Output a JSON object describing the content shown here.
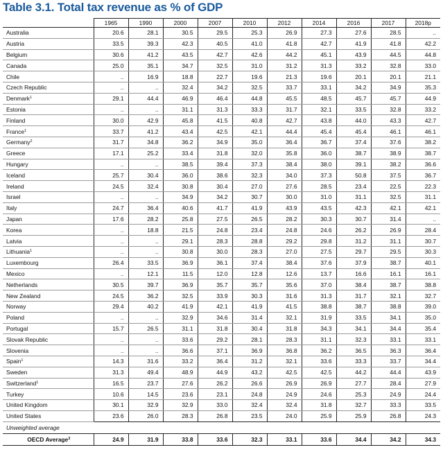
{
  "title": "Table 3.1. Total tax revenue as % of GDP",
  "columns": [
    "1965",
    "1990",
    "2000",
    "2007",
    "2010",
    "2012",
    "2014",
    "2016",
    "2017",
    "2018p"
  ],
  "rows": [
    {
      "country": "Australia",
      "sup": "",
      "values": [
        "20.6",
        "28.1",
        "30.5",
        "29.5",
        "25.3",
        "26.9",
        "27.3",
        "27.6",
        "28.5",
        ".."
      ]
    },
    {
      "country": "Austria",
      "sup": "",
      "values": [
        "33.5",
        "39.3",
        "42.3",
        "40.5",
        "41.0",
        "41.8",
        "42.7",
        "41.9",
        "41.8",
        "42.2"
      ]
    },
    {
      "country": "Belgium",
      "sup": "",
      "values": [
        "30.6",
        "41.2",
        "43.5",
        "42.7",
        "42.6",
        "44.2",
        "45.1",
        "43.9",
        "44.5",
        "44.8"
      ]
    },
    {
      "country": "Canada",
      "sup": "",
      "values": [
        "25.0",
        "35.1",
        "34.7",
        "32.5",
        "31.0",
        "31.2",
        "31.3",
        "33.2",
        "32.8",
        "33.0"
      ]
    },
    {
      "country": "Chile",
      "sup": "",
      "values": [
        "..",
        "16.9",
        "18.8",
        "22.7",
        "19.6",
        "21.3",
        "19.6",
        "20.1",
        "20.1",
        "21.1"
      ]
    },
    {
      "country": "Czech Republic",
      "sup": "",
      "values": [
        "..",
        "..",
        "32.4",
        "34.2",
        "32.5",
        "33.7",
        "33.1",
        "34.2",
        "34.9",
        "35.3"
      ]
    },
    {
      "country": "Denmark",
      "sup": "1",
      "values": [
        "29.1",
        "44.4",
        "46.9",
        "46.4",
        "44.8",
        "45.5",
        "48.5",
        "45.7",
        "45.7",
        "44.9"
      ]
    },
    {
      "country": "Estonia",
      "sup": "",
      "values": [
        "..",
        "..",
        "31.1",
        "31.3",
        "33.3",
        "31.7",
        "32.1",
        "33.5",
        "32.8",
        "33.2"
      ]
    },
    {
      "country": "Finland",
      "sup": "",
      "values": [
        "30.0",
        "42.9",
        "45.8",
        "41.5",
        "40.8",
        "42.7",
        "43.8",
        "44.0",
        "43.3",
        "42.7"
      ]
    },
    {
      "country": "France",
      "sup": "1",
      "values": [
        "33.7",
        "41.2",
        "43.4",
        "42.5",
        "42.1",
        "44.4",
        "45.4",
        "45.4",
        "46.1",
        "46.1"
      ]
    },
    {
      "country": "Germany",
      "sup": "2",
      "values": [
        "31.7",
        "34.8",
        "36.2",
        "34.9",
        "35.0",
        "36.4",
        "36.7",
        "37.4",
        "37.6",
        "38.2"
      ]
    },
    {
      "country": "Greece",
      "sup": "",
      "values": [
        "17.1",
        "25.2",
        "33.4",
        "31.8",
        "32.0",
        "35.8",
        "36.0",
        "38.7",
        "38.9",
        "38.7"
      ]
    },
    {
      "country": "Hungary",
      "sup": "",
      "values": [
        "..",
        "..",
        "38.5",
        "39.4",
        "37.3",
        "38.4",
        "38.0",
        "39.1",
        "38.2",
        "36.6"
      ]
    },
    {
      "country": "Iceland",
      "sup": "",
      "values": [
        "25.7",
        "30.4",
        "36.0",
        "38.6",
        "32.3",
        "34.0",
        "37.3",
        "50.8",
        "37.5",
        "36.7"
      ]
    },
    {
      "country": "Ireland",
      "sup": "",
      "values": [
        "24.5",
        "32.4",
        "30.8",
        "30.4",
        "27.0",
        "27.6",
        "28.5",
        "23.4",
        "22.5",
        "22.3"
      ]
    },
    {
      "country": "Israel",
      "sup": "",
      "values": [
        "..",
        "..",
        "34.9",
        "34.2",
        "30.7",
        "30.0",
        "31.0",
        "31.1",
        "32.5",
        "31.1"
      ]
    },
    {
      "country": "Italy",
      "sup": "",
      "values": [
        "24.7",
        "36.4",
        "40.6",
        "41.7",
        "41.9",
        "43.9",
        "43.5",
        "42.3",
        "42.1",
        "42.1"
      ]
    },
    {
      "country": "Japan",
      "sup": "",
      "values": [
        "17.6",
        "28.2",
        "25.8",
        "27.5",
        "26.5",
        "28.2",
        "30.3",
        "30.7",
        "31.4",
        ".."
      ]
    },
    {
      "country": "Korea",
      "sup": "",
      "values": [
        "..",
        "18.8",
        "21.5",
        "24.8",
        "23.4",
        "24.8",
        "24.6",
        "26.2",
        "26.9",
        "28.4"
      ]
    },
    {
      "country": "Latvia",
      "sup": "",
      "values": [
        "..",
        "..",
        "29.1",
        "28.3",
        "28.8",
        "29.2",
        "29.8",
        "31.2",
        "31.1",
        "30.7"
      ]
    },
    {
      "country": "Lithuania",
      "sup": "1",
      "values": [
        "..",
        "..",
        "30.8",
        "30.0",
        "28.3",
        "27.0",
        "27.5",
        "29.7",
        "29.5",
        "30.3"
      ]
    },
    {
      "country": "Luxembourg",
      "sup": "",
      "values": [
        "26.4",
        "33.5",
        "36.9",
        "36.1",
        "37.4",
        "38.4",
        "37.6",
        "37.9",
        "38.7",
        "40.1"
      ]
    },
    {
      "country": "Mexico",
      "sup": "",
      "values": [
        "..",
        "12.1",
        "11.5",
        "12.0",
        "12.8",
        "12.6",
        "13.7",
        "16.6",
        "16.1",
        "16.1"
      ]
    },
    {
      "country": "Netherlands",
      "sup": "",
      "values": [
        "30.5",
        "39.7",
        "36.9",
        "35.7",
        "35.7",
        "35.6",
        "37.0",
        "38.4",
        "38.7",
        "38.8"
      ]
    },
    {
      "country": "New Zealand",
      "sup": "",
      "values": [
        "24.5",
        "36.2",
        "32.5",
        "33.9",
        "30.3",
        "31.6",
        "31.3",
        "31.7",
        "32.1",
        "32.7"
      ]
    },
    {
      "country": "Norway",
      "sup": "",
      "values": [
        "29.4",
        "40.2",
        "41.9",
        "42.1",
        "41.9",
        "41.5",
        "38.8",
        "38.7",
        "38.8",
        "39.0"
      ]
    },
    {
      "country": "Poland",
      "sup": "",
      "values": [
        "..",
        "..",
        "32.9",
        "34.6",
        "31.4",
        "32.1",
        "31.9",
        "33.5",
        "34.1",
        "35.0"
      ]
    },
    {
      "country": "Portugal",
      "sup": "",
      "values": [
        "15.7",
        "26.5",
        "31.1",
        "31.8",
        "30.4",
        "31.8",
        "34.3",
        "34.1",
        "34.4",
        "35.4"
      ]
    },
    {
      "country": "Slovak Republic",
      "sup": "",
      "values": [
        "..",
        "..",
        "33.6",
        "29.2",
        "28.1",
        "28.3",
        "31.1",
        "32.3",
        "33.1",
        "33.1"
      ]
    },
    {
      "country": "Slovenia",
      "sup": "",
      "values": [
        "..",
        "..",
        "36.6",
        "37.1",
        "36.9",
        "36.8",
        "36.2",
        "36.5",
        "36.3",
        "36.4"
      ]
    },
    {
      "country": "Spain",
      "sup": "1",
      "values": [
        "14.3",
        "31.6",
        "33.2",
        "36.4",
        "31.2",
        "32.1",
        "33.6",
        "33.3",
        "33.7",
        "34.4"
      ]
    },
    {
      "country": "Sweden",
      "sup": "",
      "values": [
        "31.3",
        "49.4",
        "48.9",
        "44.9",
        "43.2",
        "42.5",
        "42.5",
        "44.2",
        "44.4",
        "43.9"
      ]
    },
    {
      "country": "Switzerland",
      "sup": "1",
      "values": [
        "16.5",
        "23.7",
        "27.6",
        "26.2",
        "26.6",
        "26.9",
        "26.9",
        "27.7",
        "28.4",
        "27.9"
      ]
    },
    {
      "country": "Turkey",
      "sup": "",
      "values": [
        "10.6",
        "14.5",
        "23.6",
        "23.1",
        "24.8",
        "24.9",
        "24.6",
        "25.3",
        "24.9",
        "24.4"
      ]
    },
    {
      "country": "United Kingdom",
      "sup": "",
      "values": [
        "30.1",
        "32.9",
        "32.9",
        "33.0",
        "32.4",
        "32.4",
        "31.8",
        "32.7",
        "33.3",
        "33.5"
      ]
    },
    {
      "country": "United States",
      "sup": "",
      "values": [
        "23.6",
        "26.0",
        "28.3",
        "26.8",
        "23.5",
        "24.0",
        "25.9",
        "25.9",
        "26.8",
        "24.3"
      ]
    }
  ],
  "subheading": "Unweighted average",
  "average": {
    "label": "OECD Average",
    "sup": "3",
    "values": [
      "24.9",
      "31.9",
      "33.8",
      "33.6",
      "32.3",
      "33.1",
      "33.6",
      "34.4",
      "34.2",
      "34.3"
    ]
  }
}
